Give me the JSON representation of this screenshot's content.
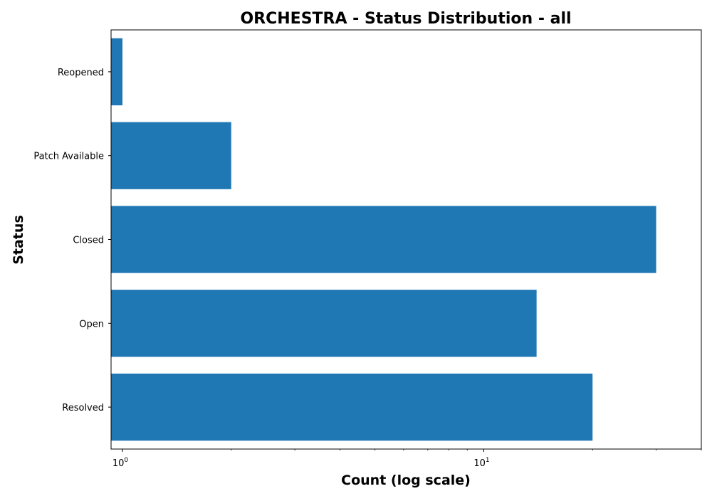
{
  "chart_data": {
    "type": "bar",
    "orientation": "horizontal",
    "title": "ORCHESTRA - Status Distribution - all",
    "xlabel": "Count (log scale)",
    "ylabel": "Status",
    "x_scale": "log",
    "xlim": [
      0.93,
      40
    ],
    "categories": [
      "Reopened",
      "Patch Available",
      "Closed",
      "Open",
      "Resolved"
    ],
    "values": [
      1,
      2,
      30,
      14,
      20
    ],
    "x_ticks": [
      {
        "base": "10",
        "exp": "0",
        "value": 1
      },
      {
        "base": "10",
        "exp": "1",
        "value": 10
      }
    ],
    "bar_color": "#1f77b4",
    "grid": false,
    "legend": "none"
  }
}
